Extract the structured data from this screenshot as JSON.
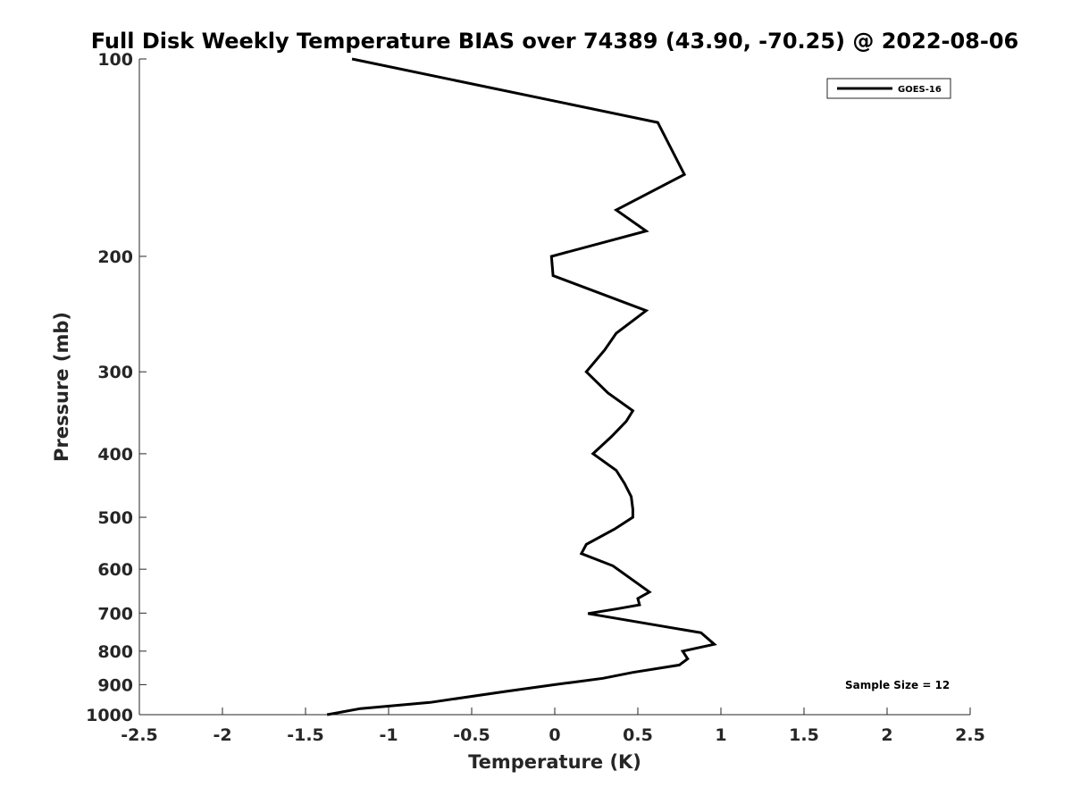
{
  "chart_data": {
    "type": "line",
    "title": "Full Disk Weekly Temperature BIAS over 74389 (43.90, -70.25) @ 2022-08-06",
    "xlabel": "Temperature (K)",
    "ylabel": "Pressure (mb)",
    "xlim": [
      -2.5,
      2.5
    ],
    "ylim": [
      100,
      1000
    ],
    "y_scale": "log",
    "y_reversed": true,
    "xticks": [
      -2.5,
      -2,
      -1.5,
      -1,
      -0.5,
      0,
      0.5,
      1,
      1.5,
      2,
      2.5
    ],
    "xtick_labels": [
      "-2.5",
      "-2",
      "-1.5",
      "-1",
      "-0.5",
      "0",
      "0.5",
      "1",
      "1.5",
      "2",
      "2.5"
    ],
    "yticks": [
      100,
      200,
      300,
      400,
      500,
      600,
      700,
      800,
      900,
      1000
    ],
    "ytick_labels": [
      "100",
      "200",
      "300",
      "400",
      "500",
      "600",
      "700",
      "800",
      "900",
      "1000"
    ],
    "grid": false,
    "legend_position": "top-right",
    "annotation": "Sample Size = 12",
    "series": [
      {
        "name": "GOES-16",
        "color": "#000000",
        "points": [
          {
            "x": -1.22,
            "p": 100
          },
          {
            "x": 0.62,
            "p": 125
          },
          {
            "x": 0.78,
            "p": 150
          },
          {
            "x": 0.37,
            "p": 170
          },
          {
            "x": 0.55,
            "p": 183
          },
          {
            "x": -0.02,
            "p": 200
          },
          {
            "x": -0.01,
            "p": 214
          },
          {
            "x": 0.55,
            "p": 242
          },
          {
            "x": 0.37,
            "p": 262
          },
          {
            "x": 0.3,
            "p": 278
          },
          {
            "x": 0.19,
            "p": 300
          },
          {
            "x": 0.32,
            "p": 323
          },
          {
            "x": 0.47,
            "p": 344
          },
          {
            "x": 0.43,
            "p": 357
          },
          {
            "x": 0.34,
            "p": 377
          },
          {
            "x": 0.23,
            "p": 400
          },
          {
            "x": 0.37,
            "p": 424
          },
          {
            "x": 0.42,
            "p": 444
          },
          {
            "x": 0.46,
            "p": 465
          },
          {
            "x": 0.47,
            "p": 486
          },
          {
            "x": 0.47,
            "p": 500
          },
          {
            "x": 0.36,
            "p": 521
          },
          {
            "x": 0.19,
            "p": 550
          },
          {
            "x": 0.16,
            "p": 568
          },
          {
            "x": 0.35,
            "p": 593
          },
          {
            "x": 0.57,
            "p": 650
          },
          {
            "x": 0.5,
            "p": 665
          },
          {
            "x": 0.51,
            "p": 680
          },
          {
            "x": 0.37,
            "p": 690
          },
          {
            "x": 0.2,
            "p": 701
          },
          {
            "x": 0.88,
            "p": 750
          },
          {
            "x": 0.96,
            "p": 781
          },
          {
            "x": 0.77,
            "p": 800
          },
          {
            "x": 0.8,
            "p": 822
          },
          {
            "x": 0.75,
            "p": 840
          },
          {
            "x": 0.47,
            "p": 862
          },
          {
            "x": 0.29,
            "p": 880
          },
          {
            "x": 0.0,
            "p": 900
          },
          {
            "x": -0.3,
            "p": 922
          },
          {
            "x": -0.75,
            "p": 958
          },
          {
            "x": -1.17,
            "p": 979
          },
          {
            "x": -1.37,
            "p": 1000
          }
        ]
      }
    ]
  }
}
